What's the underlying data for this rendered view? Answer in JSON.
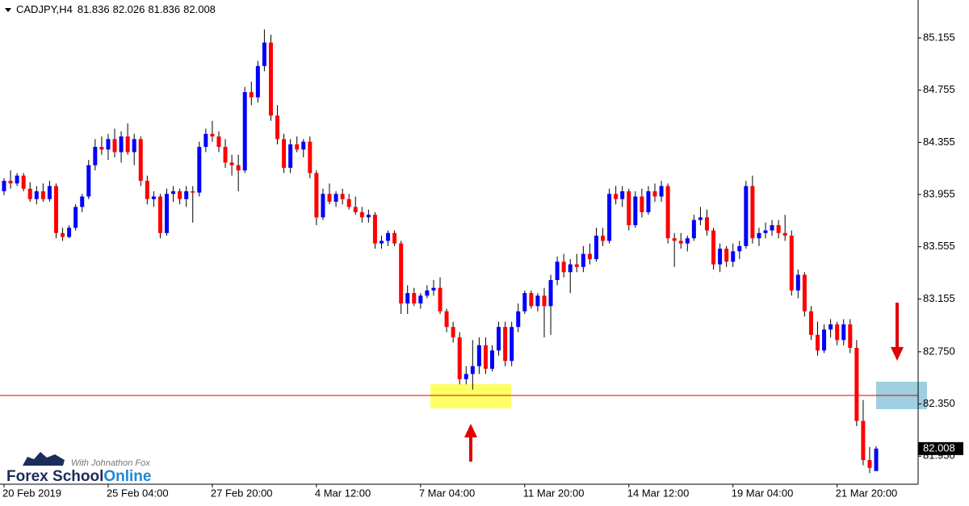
{
  "chart_data": {
    "type": "candlestick",
    "header": {
      "symbol": "CADJPY,H4",
      "ohlc": [
        81.836,
        82.026,
        81.836,
        82.008
      ]
    },
    "logo": {
      "tagline": "With Johnathon Fox",
      "brand": "Forex School",
      "brand_accent": "Online"
    },
    "up_color": "#0000ff",
    "down_color": "#ff0000",
    "level": 82.415,
    "level_color": "#e00000",
    "last_price": 82.008,
    "ylim": [
      81.735,
      85.446
    ],
    "yticks": [
      85.155,
      84.755,
      84.355,
      83.955,
      83.555,
      83.155,
      {
        "value": 82.75,
        "label": "82.750"
      },
      {
        "value": 82.35,
        "label": "82.350"
      },
      {
        "value": 81.95,
        "label": "81.950"
      }
    ],
    "categories": [
      "20 Feb 2019",
      null,
      null,
      null,
      null,
      null,
      null,
      null,
      null,
      null,
      null,
      null,
      null,
      null,
      null,
      null,
      "25 Feb 04:00",
      null,
      null,
      null,
      null,
      null,
      null,
      null,
      null,
      null,
      null,
      null,
      null,
      null,
      null,
      null,
      "27 Feb 20:00",
      null,
      null,
      null,
      null,
      null,
      null,
      null,
      null,
      null,
      null,
      null,
      null,
      null,
      null,
      null,
      "4 Mar 12:00",
      null,
      null,
      null,
      null,
      null,
      null,
      null,
      null,
      null,
      null,
      null,
      null,
      null,
      null,
      null,
      "7 Mar 04:00",
      null,
      null,
      null,
      null,
      null,
      null,
      null,
      null,
      null,
      null,
      null,
      null,
      null,
      null,
      null,
      "11 Mar 20:00",
      null,
      null,
      null,
      null,
      null,
      null,
      null,
      null,
      null,
      null,
      null,
      null,
      null,
      null,
      null,
      "14 Mar 12:00",
      null,
      null,
      null,
      null,
      null,
      null,
      null,
      null,
      null,
      null,
      null,
      null,
      null,
      null,
      null,
      "19 Mar 04:00",
      null,
      null,
      null,
      null,
      null,
      null,
      null,
      null,
      null,
      null,
      null,
      null,
      null,
      null,
      null,
      "21 Mar 20:00",
      null,
      null,
      null,
      null,
      null,
      null
    ],
    "ohlc": [
      [
        83.98,
        84.08,
        83.95,
        84.06
      ],
      [
        84.06,
        84.14,
        84.0,
        84.04
      ],
      [
        84.04,
        84.12,
        84.02,
        84.1
      ],
      [
        84.1,
        84.12,
        83.98,
        84.0
      ],
      [
        84.0,
        84.05,
        83.9,
        83.92
      ],
      [
        83.92,
        84.02,
        83.88,
        83.98
      ],
      [
        83.98,
        84.04,
        83.9,
        83.92
      ],
      [
        83.92,
        84.06,
        83.9,
        84.02
      ],
      [
        84.02,
        84.04,
        83.62,
        83.66
      ],
      [
        83.66,
        83.7,
        83.6,
        83.63
      ],
      [
        83.63,
        83.72,
        83.62,
        83.7
      ],
      [
        83.7,
        83.88,
        83.68,
        83.86
      ],
      [
        83.86,
        83.96,
        83.82,
        83.94
      ],
      [
        83.94,
        84.22,
        83.92,
        84.18
      ],
      [
        84.18,
        84.38,
        84.14,
        84.32
      ],
      [
        84.32,
        84.4,
        84.26,
        84.3
      ],
      [
        84.3,
        84.42,
        84.22,
        84.38
      ],
      [
        84.38,
        84.46,
        84.24,
        84.28
      ],
      [
        84.28,
        84.44,
        84.2,
        84.4
      ],
      [
        84.4,
        84.5,
        84.26,
        84.28
      ],
      [
        84.28,
        84.42,
        84.18,
        84.38
      ],
      [
        84.38,
        84.4,
        84.02,
        84.06
      ],
      [
        84.06,
        84.1,
        83.88,
        83.92
      ],
      [
        83.92,
        83.98,
        83.86,
        83.94
      ],
      [
        83.94,
        83.96,
        83.62,
        83.66
      ],
      [
        83.66,
        84.0,
        83.64,
        83.96
      ],
      [
        83.96,
        84.02,
        83.9,
        83.98
      ],
      [
        83.98,
        84.0,
        83.88,
        83.92
      ],
      [
        83.92,
        84.02,
        83.86,
        83.98
      ],
      [
        83.98,
        84.02,
        83.74,
        83.97
      ],
      [
        83.97,
        84.36,
        83.94,
        84.32
      ],
      [
        84.32,
        84.46,
        84.28,
        84.42
      ],
      [
        84.42,
        84.52,
        84.36,
        84.4
      ],
      [
        84.4,
        84.44,
        84.28,
        84.32
      ],
      [
        84.32,
        84.38,
        84.16,
        84.2
      ],
      [
        84.2,
        84.26,
        84.1,
        84.18
      ],
      [
        84.18,
        84.26,
        83.98,
        84.14
      ],
      [
        84.14,
        84.78,
        84.12,
        84.74
      ],
      [
        84.74,
        84.82,
        84.64,
        84.7
      ],
      [
        84.7,
        84.98,
        84.66,
        84.94
      ],
      [
        84.94,
        85.22,
        84.9,
        85.12
      ],
      [
        85.12,
        85.18,
        84.52,
        84.56
      ],
      [
        84.56,
        84.64,
        84.34,
        84.38
      ],
      [
        84.38,
        84.42,
        84.12,
        84.16
      ],
      [
        84.16,
        84.38,
        84.12,
        84.34
      ],
      [
        84.34,
        84.4,
        84.28,
        84.3
      ],
      [
        84.3,
        84.38,
        84.24,
        84.36
      ],
      [
        84.36,
        84.4,
        84.08,
        84.12
      ],
      [
        84.12,
        84.14,
        83.72,
        83.78
      ],
      [
        83.78,
        84.0,
        83.76,
        83.96
      ],
      [
        83.96,
        84.04,
        83.88,
        83.9
      ],
      [
        83.9,
        83.98,
        83.86,
        83.96
      ],
      [
        83.96,
        84.0,
        83.88,
        83.92
      ],
      [
        83.92,
        83.96,
        83.84,
        83.86
      ],
      [
        83.86,
        83.94,
        83.8,
        83.82
      ],
      [
        83.82,
        83.86,
        83.74,
        83.78
      ],
      [
        83.78,
        83.84,
        83.74,
        83.8
      ],
      [
        83.8,
        83.82,
        83.54,
        83.58
      ],
      [
        83.58,
        83.64,
        83.54,
        83.6
      ],
      [
        83.6,
        83.68,
        83.56,
        83.66
      ],
      [
        83.66,
        83.68,
        83.56,
        83.58
      ],
      [
        83.58,
        83.6,
        83.04,
        83.12
      ],
      [
        83.12,
        83.26,
        83.04,
        83.2
      ],
      [
        83.2,
        83.24,
        83.1,
        83.12
      ],
      [
        83.12,
        83.2,
        83.08,
        83.18
      ],
      [
        83.18,
        83.26,
        83.16,
        83.22
      ],
      [
        83.22,
        83.3,
        83.18,
        83.24
      ],
      [
        83.24,
        83.32,
        83.04,
        83.06
      ],
      [
        83.06,
        83.08,
        82.9,
        82.94
      ],
      [
        82.94,
        82.98,
        82.82,
        82.86
      ],
      [
        82.86,
        82.9,
        82.5,
        82.54
      ],
      [
        82.54,
        82.64,
        82.5,
        82.58
      ],
      [
        82.58,
        82.84,
        82.46,
        82.64
      ],
      [
        82.64,
        82.86,
        82.58,
        82.8
      ],
      [
        82.8,
        82.86,
        82.58,
        82.62
      ],
      [
        82.62,
        82.8,
        82.6,
        82.76
      ],
      [
        82.76,
        82.98,
        82.72,
        82.94
      ],
      [
        82.94,
        82.98,
        82.64,
        82.68
      ],
      [
        82.68,
        82.98,
        82.64,
        82.94
      ],
      [
        82.94,
        83.12,
        82.9,
        83.06
      ],
      [
        83.06,
        83.22,
        83.04,
        83.2
      ],
      [
        83.2,
        83.22,
        83.08,
        83.1
      ],
      [
        83.1,
        83.2,
        83.06,
        83.18
      ],
      [
        83.18,
        83.24,
        82.86,
        83.1
      ],
      [
        83.1,
        83.34,
        82.88,
        83.3
      ],
      [
        83.3,
        83.48,
        83.26,
        83.44
      ],
      [
        83.44,
        83.5,
        83.32,
        83.36
      ],
      [
        83.36,
        83.46,
        83.2,
        83.42
      ],
      [
        83.42,
        83.5,
        83.36,
        83.4
      ],
      [
        83.4,
        83.56,
        83.36,
        83.5
      ],
      [
        83.5,
        83.58,
        83.42,
        83.46
      ],
      [
        83.46,
        83.7,
        83.44,
        83.64
      ],
      [
        83.64,
        83.7,
        83.56,
        83.6
      ],
      [
        83.6,
        84.0,
        83.58,
        83.96
      ],
      [
        83.96,
        84.02,
        83.88,
        83.92
      ],
      [
        83.92,
        84.02,
        83.86,
        83.98
      ],
      [
        83.98,
        84.0,
        83.68,
        83.72
      ],
      [
        83.72,
        83.98,
        83.7,
        83.94
      ],
      [
        83.94,
        84.0,
        83.78,
        83.82
      ],
      [
        83.82,
        84.02,
        83.8,
        83.98
      ],
      [
        83.98,
        84.04,
        83.9,
        83.94
      ],
      [
        83.94,
        84.06,
        83.9,
        84.02
      ],
      [
        84.02,
        84.04,
        83.58,
        83.62
      ],
      [
        83.62,
        83.66,
        83.4,
        83.6
      ],
      [
        83.6,
        83.66,
        83.54,
        83.58
      ],
      [
        83.58,
        83.64,
        83.52,
        83.62
      ],
      [
        83.62,
        83.8,
        83.6,
        83.76
      ],
      [
        83.76,
        83.86,
        83.72,
        83.78
      ],
      [
        83.78,
        83.84,
        83.64,
        83.68
      ],
      [
        83.68,
        83.7,
        83.38,
        83.42
      ],
      [
        83.42,
        83.58,
        83.36,
        83.54
      ],
      [
        83.54,
        83.56,
        83.4,
        83.44
      ],
      [
        83.44,
        83.58,
        83.4,
        83.52
      ],
      [
        83.52,
        83.6,
        83.46,
        83.56
      ],
      [
        83.56,
        84.06,
        83.54,
        84.02
      ],
      [
        84.02,
        84.1,
        83.58,
        83.62
      ],
      [
        83.62,
        83.7,
        83.56,
        83.66
      ],
      [
        83.66,
        83.74,
        83.62,
        83.68
      ],
      [
        83.68,
        83.76,
        83.64,
        83.72
      ],
      [
        83.72,
        83.76,
        83.62,
        83.66
      ],
      [
        83.66,
        83.8,
        83.6,
        83.64
      ],
      [
        83.64,
        83.68,
        83.18,
        83.22
      ],
      [
        83.22,
        83.38,
        83.16,
        83.34
      ],
      [
        83.34,
        83.36,
        83.02,
        83.06
      ],
      [
        83.06,
        83.1,
        82.84,
        82.88
      ],
      [
        82.88,
        82.98,
        82.72,
        82.76
      ],
      [
        82.76,
        82.96,
        82.74,
        82.92
      ],
      [
        82.92,
        83.0,
        82.86,
        82.96
      ],
      [
        82.96,
        82.98,
        82.8,
        82.84
      ],
      [
        82.84,
        83.0,
        82.8,
        82.96
      ],
      [
        82.96,
        83.0,
        82.74,
        82.78
      ],
      [
        82.78,
        82.84,
        82.18,
        82.22
      ],
      [
        82.22,
        82.38,
        81.88,
        81.92
      ],
      [
        81.92,
        82.02,
        81.82,
        81.86
      ],
      [
        81.836,
        82.026,
        81.836,
        82.008
      ]
    ]
  }
}
